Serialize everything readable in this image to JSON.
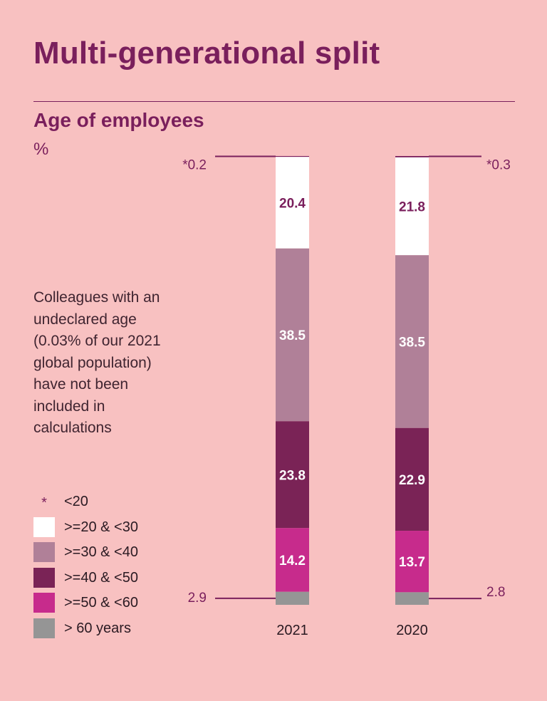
{
  "header": {
    "title": "Multi-generational split",
    "subtitle": "Age of employees",
    "unit": "%"
  },
  "note": "Colleagues with an undeclared age (0.03% of our 2021 global population) have not been included in calculations",
  "legend": [
    {
      "label": "<20",
      "marker": "*",
      "color": null
    },
    {
      "label": ">=20 & <30",
      "color": "#ffffff"
    },
    {
      "label": ">=30 & <40",
      "color": "#b08098"
    },
    {
      "label": ">=40 & <50",
      "color": "#7a2356"
    },
    {
      "label": ">=50 & <60",
      "color": "#c72b8c"
    },
    {
      "label": "> 60 years",
      "color": "#959595"
    }
  ],
  "chart_data": {
    "type": "bar",
    "stacked": true,
    "orientation": "vertical",
    "unit": "%",
    "categories": [
      "2021",
      "2020"
    ],
    "series": [
      {
        "name": "<20",
        "values": [
          0.2,
          0.3
        ],
        "color": "#7a1f5c",
        "callout": [
          "*0.2",
          "*0.3"
        ]
      },
      {
        "name": ">=20 & <30",
        "values": [
          20.4,
          21.8
        ],
        "color": "#ffffff",
        "label_color": "#7a1f5c",
        "labels": [
          "20.4",
          "21.8"
        ]
      },
      {
        "name": ">=30 & <40",
        "values": [
          38.5,
          38.5
        ],
        "color": "#b08098",
        "label_color": "#ffffff",
        "labels": [
          "38.5",
          "38.5"
        ]
      },
      {
        "name": ">=40 & <50",
        "values": [
          23.8,
          22.9
        ],
        "color": "#7a2356",
        "label_color": "#ffffff",
        "labels": [
          "23.8",
          "22.9"
        ]
      },
      {
        "name": ">=50 & <60",
        "values": [
          14.2,
          13.7
        ],
        "color": "#c72b8c",
        "label_color": "#ffffff",
        "labels": [
          "14.2",
          "13.7"
        ]
      },
      {
        "name": "> 60 years",
        "values": [
          2.9,
          2.8
        ],
        "color": "#959595",
        "callout": [
          "2.9",
          "2.8"
        ]
      }
    ],
    "callout_side": [
      "left",
      "right"
    ],
    "ylim": [
      0,
      100
    ]
  }
}
